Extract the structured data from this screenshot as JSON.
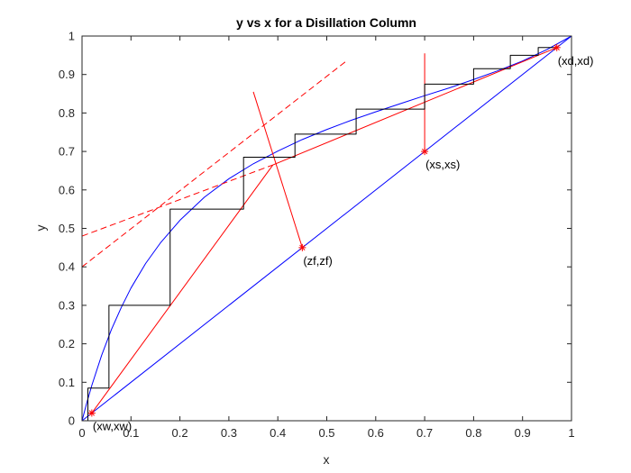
{
  "chart_data": {
    "type": "line",
    "title": "y vs x for a Disillation Column",
    "xlabel": "x",
    "ylabel": "y",
    "xlim": [
      0,
      1
    ],
    "ylim": [
      0,
      1
    ],
    "grid": false,
    "legend": "none",
    "x_ticks": [
      "0",
      "0.1",
      "0.2",
      "0.3",
      "0.4",
      "0.5",
      "0.6",
      "0.7",
      "0.8",
      "0.9",
      "1"
    ],
    "y_ticks": [
      "0",
      "0.1",
      "0.2",
      "0.3",
      "0.4",
      "0.5",
      "0.6",
      "0.7",
      "0.8",
      "0.9",
      "1"
    ],
    "colors": {
      "equilibrium": "#0000ff",
      "diagonal": "#0000ff",
      "operating": "#ff0000",
      "stages": "#000000",
      "markers": "#ff0000"
    },
    "series": [
      {
        "role": "equilibrium",
        "style": "solid",
        "color": "#0000ff",
        "x": [
          0,
          0.01,
          0.02,
          0.04,
          0.06,
          0.08,
          0.1,
          0.13,
          0.16,
          0.2,
          0.25,
          0.3,
          0.35,
          0.4,
          0.45,
          0.5,
          0.55,
          0.6,
          0.65,
          0.7,
          0.75,
          0.8,
          0.85,
          0.9,
          0.95,
          1
        ],
        "y": [
          0,
          0.048,
          0.092,
          0.17,
          0.237,
          0.294,
          0.345,
          0.409,
          0.462,
          0.521,
          0.581,
          0.629,
          0.668,
          0.701,
          0.731,
          0.757,
          0.781,
          0.803,
          0.824,
          0.845,
          0.865,
          0.887,
          0.91,
          0.935,
          0.965,
          1
        ]
      },
      {
        "role": "diagonal",
        "style": "solid",
        "color": "#0000ff",
        "x": [
          0,
          1
        ],
        "y": [
          0,
          1
        ]
      },
      {
        "role": "rectifying-operating-line",
        "style": "solid",
        "color": "#ff0000",
        "x": [
          0.39,
          0.97
        ],
        "y": [
          0.665,
          0.97
        ]
      },
      {
        "role": "stripping-operating-line",
        "style": "solid",
        "color": "#ff0000",
        "x": [
          0.02,
          0.39
        ],
        "y": [
          0.02,
          0.665
        ]
      },
      {
        "role": "q-line",
        "style": "solid",
        "color": "#ff0000",
        "x": [
          0.35,
          0.45
        ],
        "y": [
          0.855,
          0.45
        ]
      },
      {
        "role": "feed-vertical-line",
        "style": "solid",
        "color": "#ff0000",
        "x": [
          0.7,
          0.7
        ],
        "y": [
          0.7,
          0.955
        ]
      },
      {
        "role": "rectifying-extension",
        "style": "dashed",
        "color": "#ff0000",
        "x": [
          0,
          0.39
        ],
        "y": [
          0.48,
          0.665
        ]
      },
      {
        "role": "stripping-extension",
        "style": "dashed",
        "color": "#ff0000",
        "x": [
          0,
          0.54
        ],
        "y": [
          0.4,
          0.935
        ]
      },
      {
        "role": "stages",
        "style": "solid",
        "color": "#000000",
        "x": [
          0.97,
          0.932,
          0.932,
          0.875,
          0.875,
          0.8,
          0.8,
          0.7,
          0.7,
          0.56,
          0.56,
          0.435,
          0.435,
          0.33,
          0.33,
          0.18,
          0.18,
          0.055,
          0.055,
          0.012,
          0.012
        ],
        "y": [
          0.97,
          0.97,
          0.95,
          0.95,
          0.915,
          0.915,
          0.875,
          0.875,
          0.81,
          0.81,
          0.745,
          0.745,
          0.685,
          0.685,
          0.55,
          0.55,
          0.3,
          0.3,
          0.085,
          0.085,
          0.0
        ]
      }
    ],
    "points": [
      {
        "label": "(xw,xw)",
        "x": 0.02,
        "y": 0.02,
        "anchor": "below"
      },
      {
        "label": "(zf,zf)",
        "x": 0.45,
        "y": 0.45,
        "anchor": "below"
      },
      {
        "label": "(xs,xs)",
        "x": 0.7,
        "y": 0.7,
        "anchor": "below"
      },
      {
        "label": "(xd,xd)",
        "x": 0.97,
        "y": 0.97,
        "anchor": "below"
      }
    ]
  }
}
